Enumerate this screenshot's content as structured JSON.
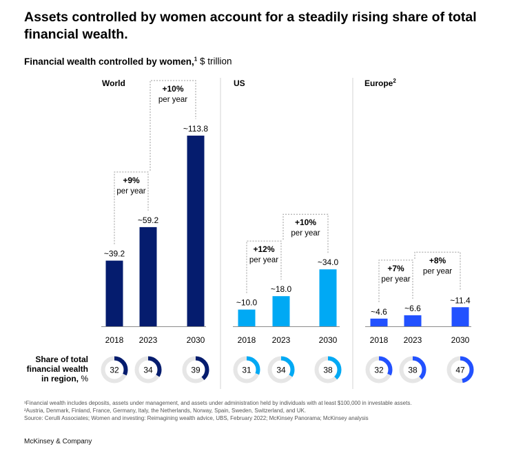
{
  "title": "Assets controlled by women account for a steadily rising share of total financial wealth.",
  "subtitle": {
    "main": "Financial wealth controlled by women,",
    "sup": "1",
    "unit": " $ trillion"
  },
  "chart_data": {
    "type": "bar",
    "panels": [
      {
        "region": "World",
        "region_sup": "",
        "color": "#051c6e",
        "categories": [
          "2018",
          "2023",
          "2030"
        ],
        "values": [
          39.2,
          59.2,
          113.8
        ],
        "labels": [
          "~39.2",
          "~59.2",
          "~113.8"
        ],
        "growth": [
          {
            "rate": "+9%",
            "text": "per year"
          },
          {
            "rate": "+10%",
            "text": "per year"
          }
        ],
        "share_pct": [
          32,
          34,
          39
        ]
      },
      {
        "region": "US",
        "region_sup": "",
        "color": "#00a9f4",
        "categories": [
          "2018",
          "2023",
          "2030"
        ],
        "values": [
          10.0,
          18.0,
          34.0
        ],
        "labels": [
          "~10.0",
          "~18.0",
          "~34.0"
        ],
        "growth": [
          {
            "rate": "+12%",
            "text": "per year"
          },
          {
            "rate": "+10%",
            "text": "per year"
          }
        ],
        "share_pct": [
          31,
          34,
          38
        ]
      },
      {
        "region": "Europe",
        "region_sup": "2",
        "color": "#2251ff",
        "categories": [
          "2018",
          "2023",
          "2030"
        ],
        "values": [
          4.6,
          6.6,
          11.4
        ],
        "labels": [
          "~4.6",
          "~6.6",
          "~11.4"
        ],
        "growth": [
          {
            "rate": "+7%",
            "text": "per year"
          },
          {
            "rate": "+8%",
            "text": "per year"
          }
        ],
        "share_pct": [
          32,
          38,
          47
        ]
      }
    ],
    "share_label": [
      "Share of total",
      "financial wealth",
      "in region, %"
    ],
    "donut_track_color": "#e6e6e6"
  },
  "footnotes": [
    "¹Financial wealth includes deposits, assets under management, and assets under administration held by individuals with at least $100,000 in investable assets.",
    "²Austria, Denmark, Finland, France, Germany, Italy, the Netherlands, Norway, Spain, Sweden, Switzerland, and UK.",
    " Source: Cerulli Associates; Women and investing: Reimagining wealth advice, UBS, February 2022; McKinsey Panorama; McKinsey analysis"
  ],
  "brand": "McKinsey & Company"
}
